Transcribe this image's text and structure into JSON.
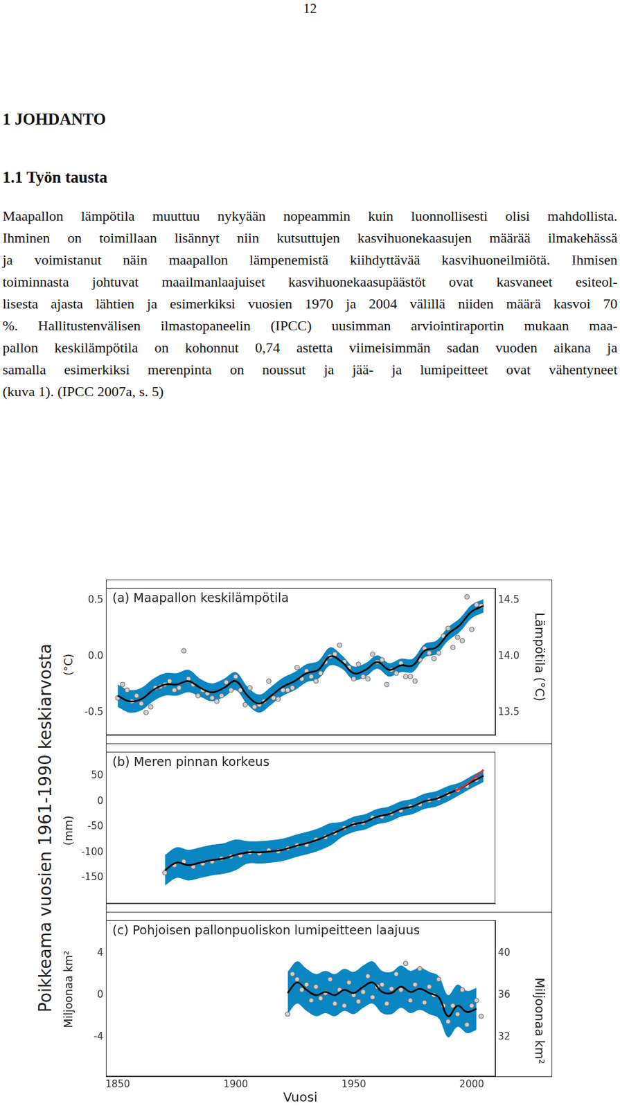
{
  "page_number": "12",
  "headings": [
    "1 JOHDANTO",
    "1.1 Työn tausta"
  ],
  "paragraph_lines": [
    "Maapallon lämpötila muuttuu nykyään nopeammin kuin luonnollisesti olisi mahdollista.",
    "Ihminen on toimillaan lisännyt niin kutsuttujen kasvihuonekaasujen määrää ilmakehässä",
    "ja voimistanut näin maapallon lämpenemistä kiihdyttävää kasvihuoneilmiötä. Ihmisen",
    "toiminnasta johtuvat maailmanlaajuiset kasvihuonekaasupäästöt ovat kasvaneet esiteol-",
    "lisesta ajasta lähtien ja esimerkiksi vuosien 1970 ja 2004 välillä niiden määrä kasvoi 70",
    "%. Hallitustenvälisen ilmastopaneelin (IPCC) uusimman arviointiraportin mukaan maa-",
    "pallon keskilämpötila on kohonnut 0,74 astetta viimeisimmän sadan vuoden aikana ja",
    "samalla esimerkiksi merenpinta on noussut ja jää- ja lumipeitteet ovat vähentyneet",
    "(kuva 1). (IPCC 2007a, s. 5)"
  ],
  "figure_ylabel": "Poikkeama vuosien 1961-1990 keskiarvosta",
  "chart_data": [
    {
      "type": "line",
      "title": "(a) Maapallon keskilämpötila",
      "ylabel": "(°C)",
      "y2label": "Lämpötila (°C)",
      "grid": false,
      "xlim": [
        1845,
        2010
      ],
      "ylim": [
        -0.7,
        0.61
      ],
      "yticks": [
        -0.5,
        {
          "value": 0,
          "label": "0.0"
        },
        0.5
      ],
      "y2lim": [
        13.3,
        14.61
      ],
      "y2ticks": [
        13.5,
        {
          "value": 14,
          "label": "14.0"
        },
        14.5
      ],
      "series": [
        {
          "type": "area",
          "color": "#0a86c2",
          "x": [
            1850,
            1855,
            1860,
            1865,
            1870,
            1875,
            1880,
            1885,
            1890,
            1895,
            1900,
            1905,
            1910,
            1915,
            1920,
            1925,
            1930,
            1935,
            1940,
            1945,
            1950,
            1955,
            1960,
            1965,
            1970,
            1975,
            1980,
            1985,
            1990,
            1995,
            2000,
            2005
          ],
          "low": [
            -0.45,
            -0.5,
            -0.48,
            -0.4,
            -0.35,
            -0.35,
            -0.32,
            -0.36,
            -0.4,
            -0.36,
            -0.3,
            -0.43,
            -0.5,
            -0.43,
            -0.35,
            -0.3,
            -0.23,
            -0.2,
            -0.08,
            -0.11,
            -0.21,
            -0.18,
            -0.11,
            -0.18,
            -0.14,
            -0.14,
            -0.01,
            0.02,
            0.14,
            0.22,
            0.34,
            0.39
          ],
          "high": [
            -0.25,
            -0.3,
            -0.28,
            -0.2,
            -0.15,
            -0.15,
            -0.12,
            -0.2,
            -0.24,
            -0.2,
            -0.14,
            -0.27,
            -0.34,
            -0.27,
            -0.19,
            -0.14,
            -0.07,
            -0.04,
            0.08,
            0.01,
            -0.09,
            -0.06,
            0.01,
            -0.06,
            -0.02,
            -0.02,
            0.11,
            0.14,
            0.26,
            0.34,
            0.46,
            0.51
          ]
        },
        {
          "type": "scatter",
          "color": "#cfcfcf",
          "marker": "circle",
          "x": [
            1850,
            1852,
            1854,
            1856,
            1858,
            1860,
            1862,
            1864,
            1866,
            1868,
            1870,
            1872,
            1874,
            1876,
            1878,
            1880,
            1882,
            1884,
            1886,
            1888,
            1890,
            1892,
            1894,
            1896,
            1898,
            1900,
            1902,
            1904,
            1906,
            1908,
            1910,
            1912,
            1914,
            1916,
            1918,
            1920,
            1922,
            1924,
            1926,
            1928,
            1930,
            1932,
            1934,
            1936,
            1938,
            1940,
            1942,
            1944,
            1946,
            1948,
            1950,
            1952,
            1954,
            1956,
            1958,
            1960,
            1962,
            1964,
            1966,
            1968,
            1970,
            1972,
            1974,
            1976,
            1978,
            1980,
            1982,
            1984,
            1986,
            1988,
            1990,
            1992,
            1994,
            1996,
            1998,
            2000,
            2002,
            2004
          ],
          "values": [
            -0.37,
            -0.25,
            -0.3,
            -0.4,
            -0.35,
            -0.42,
            -0.5,
            -0.45,
            -0.28,
            -0.27,
            -0.25,
            -0.22,
            -0.3,
            -0.28,
            0.05,
            -0.2,
            -0.25,
            -0.35,
            -0.3,
            -0.33,
            -0.37,
            -0.4,
            -0.35,
            -0.23,
            -0.3,
            -0.18,
            -0.3,
            -0.43,
            -0.28,
            -0.45,
            -0.43,
            -0.4,
            -0.22,
            -0.37,
            -0.38,
            -0.3,
            -0.3,
            -0.28,
            -0.1,
            -0.2,
            -0.13,
            -0.18,
            -0.22,
            -0.15,
            -0.05,
            0.0,
            0.02,
            0.1,
            -0.05,
            -0.1,
            -0.2,
            -0.07,
            -0.18,
            -0.2,
            0.02,
            -0.05,
            -0.03,
            -0.25,
            -0.12,
            -0.15,
            -0.06,
            -0.18,
            -0.18,
            -0.22,
            -0.03,
            0.07,
            0.03,
            -0.02,
            0.03,
            0.18,
            0.25,
            0.08,
            0.17,
            0.14,
            0.53,
            0.24,
            0.46,
            0.45
          ]
        },
        {
          "type": "line",
          "color": "#000000",
          "line_style": "solid",
          "x": [
            1850,
            1855,
            1860,
            1865,
            1870,
            1875,
            1880,
            1885,
            1890,
            1895,
            1900,
            1905,
            1910,
            1915,
            1920,
            1925,
            1930,
            1935,
            1940,
            1945,
            1950,
            1955,
            1960,
            1965,
            1970,
            1975,
            1980,
            1985,
            1990,
            1995,
            2000,
            2005
          ],
          "values": [
            -0.35,
            -0.4,
            -0.38,
            -0.3,
            -0.25,
            -0.25,
            -0.22,
            -0.28,
            -0.32,
            -0.28,
            -0.22,
            -0.35,
            -0.42,
            -0.35,
            -0.27,
            -0.22,
            -0.15,
            -0.12,
            0.0,
            -0.05,
            -0.15,
            -0.12,
            -0.05,
            -0.12,
            -0.08,
            -0.08,
            0.05,
            0.08,
            0.2,
            0.28,
            0.4,
            0.45
          ]
        }
      ]
    },
    {
      "type": "line",
      "title": "(b) Meren pinnan korkeus",
      "ylabel": "(mm)",
      "grid": false,
      "xlim": [
        1845,
        2010
      ],
      "ylim": [
        -200,
        97
      ],
      "yticks": [
        -150,
        -100,
        -50,
        0,
        50
      ],
      "series": [
        {
          "type": "area",
          "color": "#0a86c2",
          "x": [
            1870,
            1875,
            1880,
            1885,
            1890,
            1895,
            1900,
            1905,
            1910,
            1915,
            1920,
            1925,
            1930,
            1935,
            1940,
            1945,
            1950,
            1955,
            1960,
            1965,
            1970,
            1975,
            1980,
            1985,
            1990,
            1995,
            2000,
            2005
          ],
          "low": [
            -165,
            -150,
            -155,
            -150,
            -145,
            -142,
            -135,
            -122,
            -122,
            -120,
            -117,
            -110,
            -104,
            -97,
            -87,
            -70,
            -60,
            -55,
            -45,
            -40,
            -30,
            -25,
            -15,
            -10,
            0,
            13,
            26,
            38
          ],
          "high": [
            -105,
            -90,
            -95,
            -90,
            -85,
            -82,
            -75,
            -78,
            -78,
            -76,
            -73,
            -66,
            -60,
            -53,
            -43,
            -40,
            -30,
            -25,
            -15,
            -10,
            0,
            5,
            15,
            20,
            30,
            37,
            50,
            62
          ]
        },
        {
          "type": "scatter",
          "color": "#cfcfcf",
          "marker": "circle",
          "x": [
            1870,
            1874,
            1878,
            1882,
            1886,
            1890,
            1894,
            1898,
            1902,
            1906,
            1910,
            1914,
            1918,
            1922,
            1926,
            1930,
            1934,
            1938,
            1942,
            1946,
            1950,
            1954,
            1958,
            1962,
            1966,
            1970,
            1974,
            1978,
            1982,
            1986,
            1990,
            1994,
            1998,
            2002
          ],
          "values": [
            -140,
            -125,
            -118,
            -128,
            -122,
            -118,
            -112,
            -108,
            -106,
            -100,
            -102,
            -96,
            -98,
            -92,
            -86,
            -85,
            -75,
            -70,
            -62,
            -52,
            -45,
            -42,
            -32,
            -30,
            -24,
            -18,
            -10,
            -6,
            2,
            6,
            14,
            22,
            30,
            42
          ]
        },
        {
          "type": "line",
          "color": "#000000",
          "line_style": "solid",
          "x": [
            1870,
            1875,
            1880,
            1885,
            1890,
            1895,
            1900,
            1905,
            1910,
            1915,
            1920,
            1925,
            1930,
            1935,
            1940,
            1945,
            1950,
            1955,
            1960,
            1965,
            1970,
            1975,
            1980,
            1985,
            1990,
            1995,
            2000,
            2005
          ],
          "values": [
            -135,
            -120,
            -125,
            -120,
            -115,
            -112,
            -105,
            -100,
            -100,
            -98,
            -95,
            -88,
            -82,
            -75,
            -65,
            -55,
            -45,
            -40,
            -30,
            -25,
            -15,
            -10,
            0,
            5,
            15,
            25,
            38,
            50
          ]
        },
        {
          "type": "line",
          "color": "#e03030",
          "line_style": "solid",
          "x": [
            1993,
            1996,
            1999,
            2002,
            2005
          ],
          "values": [
            20,
            28,
            38,
            50,
            62
          ]
        }
      ]
    },
    {
      "type": "line",
      "title": "(c) Pohjoisen pallonpuoliskon lumipeitteen laajuus",
      "ylabel": "Miljoonaa km²",
      "y2label": "Miljoonaa km²",
      "xlabel": "Vuosi",
      "grid": false,
      "xlim": [
        1845,
        2010
      ],
      "xticks": [
        1850,
        1900,
        1950,
        2000
      ],
      "ylim": [
        -7.7,
        7.1
      ],
      "yticks": [
        -4,
        0,
        4
      ],
      "y2lim": [
        28.3,
        43.1
      ],
      "y2ticks": [
        32,
        36,
        40
      ],
      "series": [
        {
          "type": "area",
          "color": "#0a86c2",
          "x": [
            1922,
            1926,
            1930,
            1934,
            1938,
            1942,
            1946,
            1950,
            1954,
            1958,
            1962,
            1966,
            1970,
            1974,
            1978,
            1982,
            1986,
            1990,
            1994,
            1998,
            2002
          ],
          "low": [
            -1.8,
            -0.8,
            -1.5,
            -2.0,
            -1.7,
            -2.0,
            -1.5,
            -1.8,
            -1.2,
            -0.8,
            -1.7,
            -1.8,
            -1.2,
            -1.7,
            -1.4,
            -1.8,
            -2.2,
            -4.0,
            -3.0,
            -3.6,
            -3.3
          ],
          "high": [
            2.2,
            3.2,
            2.5,
            2.0,
            2.3,
            2.0,
            2.5,
            2.2,
            2.8,
            3.2,
            2.3,
            2.2,
            2.8,
            2.3,
            2.6,
            2.2,
            1.8,
            0.0,
            1.0,
            0.4,
            0.7
          ]
        },
        {
          "type": "scatter",
          "color": "#cfcfcf",
          "marker": "circle",
          "x": [
            1922,
            1924,
            1926,
            1928,
            1930,
            1932,
            1934,
            1936,
            1938,
            1940,
            1942,
            1944,
            1946,
            1948,
            1950,
            1952,
            1954,
            1956,
            1958,
            1960,
            1962,
            1964,
            1966,
            1968,
            1970,
            1972,
            1974,
            1976,
            1978,
            1980,
            1982,
            1984,
            1986,
            1988,
            1990,
            1992,
            1994,
            1996,
            1998,
            2000,
            2002,
            2004
          ],
          "values": [
            -1.8,
            2.0,
            1.5,
            0.5,
            1.0,
            -0.5,
            0.8,
            -0.3,
            0.2,
            1.5,
            -0.8,
            0.5,
            -1.0,
            1.2,
            0.0,
            -0.6,
            0.3,
            1.8,
            -0.2,
            0.8,
            1.0,
            -0.8,
            0.6,
            2.0,
            0.5,
            3.0,
            -0.5,
            1.0,
            2.5,
            -0.7,
            0.8,
            0.0,
            1.5,
            -1.0,
            -2.5,
            -1.0,
            -1.8,
            0.5,
            -2.8,
            -1.0,
            -0.5,
            -2.0
          ]
        },
        {
          "type": "line",
          "color": "#000000",
          "line_style": "solid",
          "x": [
            1922,
            1926,
            1930,
            1934,
            1938,
            1942,
            1946,
            1950,
            1954,
            1958,
            1962,
            1966,
            1970,
            1974,
            1978,
            1982,
            1986,
            1990,
            1994,
            1998,
            2002
          ],
          "values": [
            0.2,
            1.2,
            0.5,
            0.0,
            0.3,
            0.0,
            0.5,
            0.2,
            0.8,
            1.2,
            0.3,
            0.2,
            0.8,
            0.3,
            0.6,
            0.2,
            -0.2,
            -2.0,
            -1.0,
            -1.6,
            -1.3
          ]
        }
      ]
    }
  ]
}
